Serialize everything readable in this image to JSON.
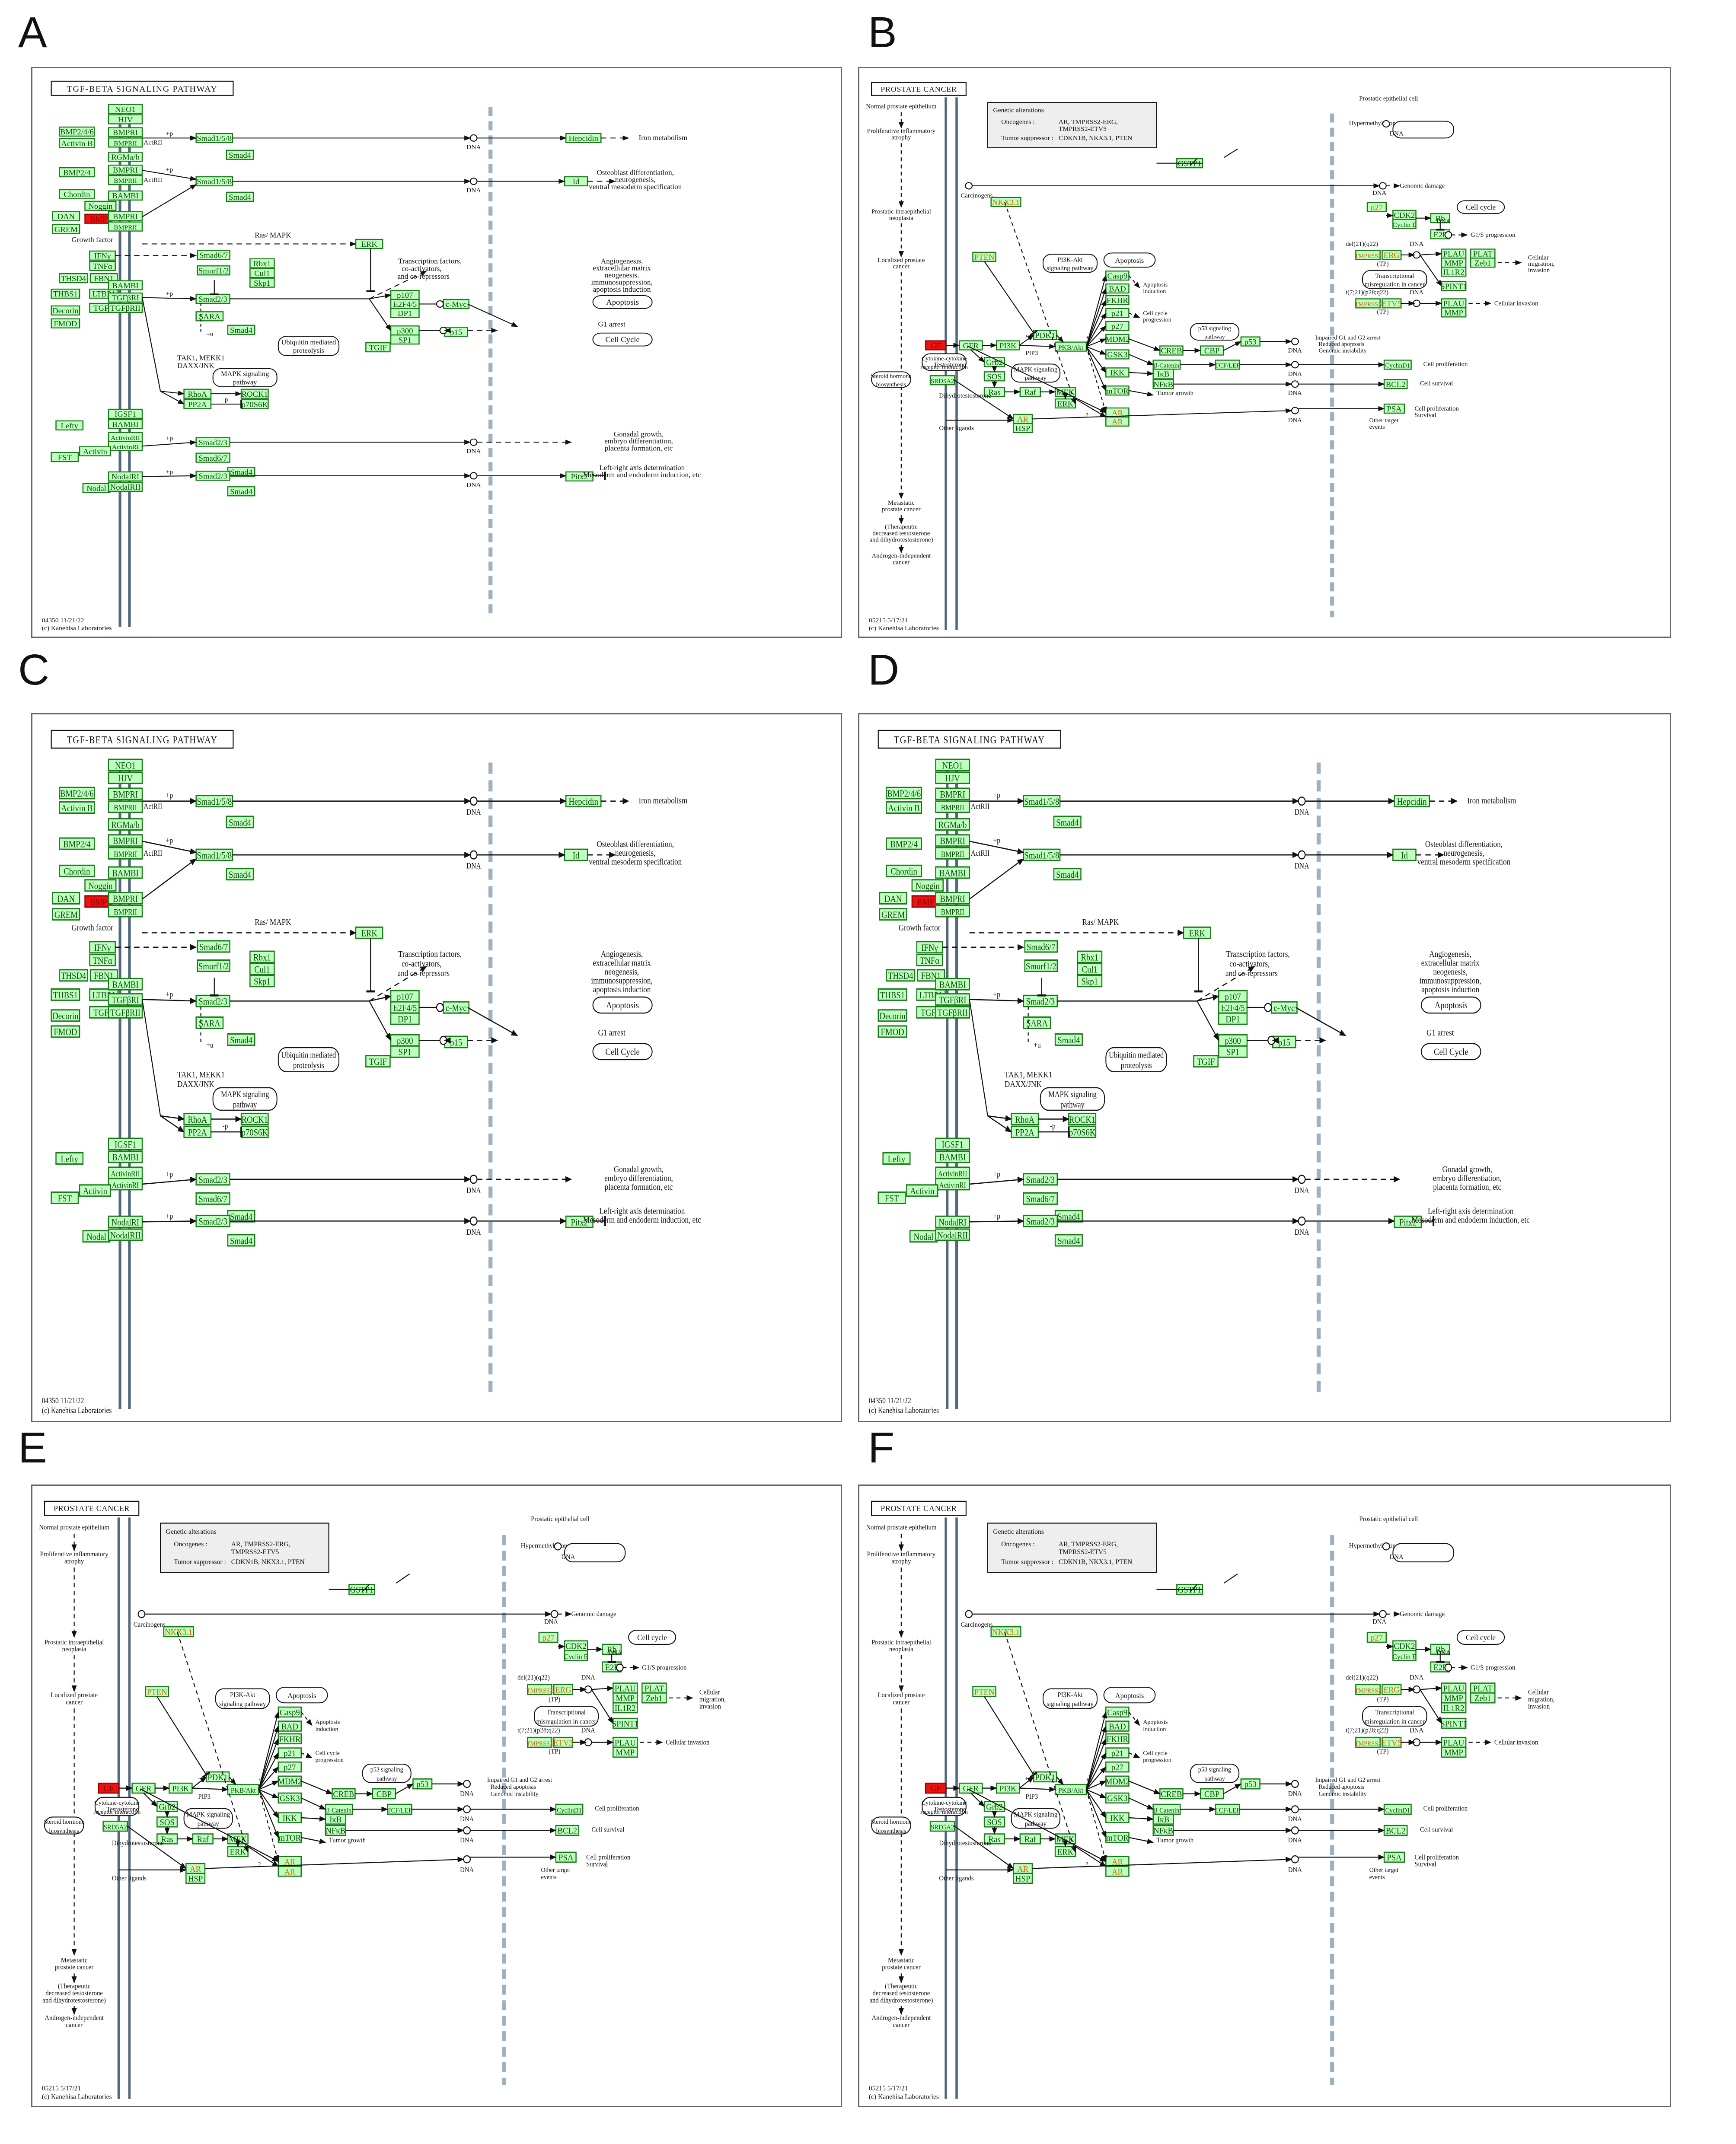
{
  "figure": {
    "panels": [
      {
        "letter": "A",
        "kind": "tgf",
        "highlight": "BMP",
        "highlight_ligand": true
      },
      {
        "letter": "B",
        "kind": "prostate",
        "highlight": "GF"
      },
      {
        "letter": "C",
        "kind": "tgf",
        "highlight": "BMP"
      },
      {
        "letter": "D",
        "kind": "tgf",
        "highlight": "BMP"
      },
      {
        "letter": "E",
        "kind": "prostate",
        "highlight": "GF"
      },
      {
        "letter": "F",
        "kind": "prostate",
        "highlight": "GF"
      }
    ]
  },
  "tgf": {
    "title": "TGF-BETA SIGNALING PATHWAY",
    "footer_id": "04350 11/21/22",
    "footer_copy": "(c) Kanehisa Laboratories",
    "nodes": {
      "neo1": "NEO1",
      "hjv": "HJV",
      "bmp246": "BMP2/4/6",
      "activinb": "Activin B",
      "bmpri_1": "BMPRI",
      "bmprii_1": "BMPRII",
      "actrii_1": "ActRII",
      "rgma": "RGMa/b",
      "bmp24": "BMP2/4",
      "bmpri_2": "BMPRI",
      "bmprii_2": "BMPRII",
      "actrii_2": "ActRII",
      "chordin": "Chordin",
      "noggin": "Noggin",
      "bambi_1": "BAMBI",
      "dan": "DAN",
      "bmp": "BMP",
      "bmpri_3": "BMPRI",
      "bmprii_3": "BMPRII",
      "grem": "GREM",
      "smad158_1": "Smad1/5/8",
      "smad4_1": "Smad4",
      "smad158_2": "Smad1/5/8",
      "smad4_2": "Smad4",
      "hepcidin": "Hepcidin",
      "id": "Id",
      "erk": "ERK",
      "ifng": "IFNγ",
      "tnfa": "TNFα",
      "smad67_1": "Smad6/7",
      "smurf": "Smurf1/2",
      "rbx1": "Rbx1",
      "cul1": "Cul1",
      "skp1": "Skp1",
      "thsd4": "THSD4",
      "fbn1": "FBN1",
      "thbs1": "THBS1",
      "ltbp1": "LTBP1",
      "decorin": "Decorin",
      "fmod": "FMOD",
      "tgfb": "TGFβ",
      "bambi_2": "BAMBI",
      "tgfbri": "TGFβRI",
      "tgfbrii": "TGFβRII",
      "smad23_1": "Smad2/3",
      "smad4_3": "Smad4",
      "sara": "SARA",
      "p107": "p107",
      "e2f45": "E2F4/5",
      "dp1": "DP1",
      "cmyc": "c-Myc",
      "p300": "p300",
      "sp1": "SP1",
      "p15": "p15",
      "tgif": "TGIF",
      "rhoa": "RhoA",
      "rock1": "ROCK1",
      "pp2a": "PP2A",
      "p70s6k": "p70S6K",
      "lefty": "Lefty",
      "igsf1": "IGSF1",
      "bambi_3": "BAMBI",
      "actrii_3": "ActivinRII",
      "activinri": "ActivinRI",
      "fst": "FST",
      "activin": "Activin",
      "smad23_2": "Smad2/3",
      "smad67_2": "Smad6/7",
      "smad4_4": "Smad4",
      "nodal": "Nodal",
      "nodalri": "NodalRI",
      "nodalrii": "NodalRII",
      "smad23_3": "Smad2/3",
      "smad4_5": "Smad4",
      "pitx2": "Pitx2"
    },
    "labels": {
      "iron": "Iron metabolism",
      "osteo": "Osteoblast differentiation,",
      "osteo2": "neurogenesis,",
      "osteo3": "ventral mesoderm specification",
      "growth_factor": "Growth factor",
      "ras_mapk": "Ras/ MAPK",
      "tf1": "Transcription factors,",
      "tf2": "co-activators,",
      "tf3": "and co-repressors",
      "angio1": "Angiogenesis,",
      "angio2": "extracellular matrix",
      "angio3": "neogenesis,",
      "angio4": "immunosuppression,",
      "angio5": "apoptosis induction",
      "apoptosis": "Apoptosis",
      "g1": "G1 arrest",
      "cellcycle": "Cell Cycle",
      "ubiq1": "Ubiquitin mediated",
      "ubiq2": "proteolysis",
      "tak1": "TAK1, MEKK1",
      "tak2": "DAXX/JNK",
      "mapk1": "MAPK signaling",
      "mapk2": "pathway",
      "gonad1": "Gonadal growth,",
      "gonad2": "embryo differentiation,",
      "gonad3": "placenta formation, etc",
      "lr1": "Left-right axis determination",
      "lr2": "Mesoderm and endoderm induction, etc",
      "dna": "DNA",
      "p": "+p",
      "u": "+u",
      "minusp": "-p"
    }
  },
  "prostate": {
    "title": "PROSTATE CANCER",
    "footer_id": "05215 5/17/21",
    "footer_copy": "(c) Kanehisa Laboratories",
    "genetic": {
      "head": "Genetic alterations",
      "onc_label": "Oncogenes :",
      "onc_val": "AR, TMPRSS2-ERG,",
      "onc_val2": "TMPRSS2-ETV5",
      "ts_label": "Tumor suppressor :",
      "ts_val": "CDKN1B, NKX3.1, PTEN"
    },
    "nodes": {
      "gf": "GF",
      "gfr": "GFR",
      "pi3k": "PI3K",
      "pdk1": "PDK1",
      "pkb": "PKB/Akt",
      "pten": "PTEN",
      "nkx31": "NKX3.1",
      "grb2": "Grb2",
      "sos": "SOS",
      "ras": "Ras",
      "raf": "Raf",
      "mek": "MEK",
      "erk": "ERK",
      "casp9": "Casp9",
      "bad": "BAD",
      "fkhr": "FKHR",
      "p21": "p21",
      "p27": "p27",
      "mdm2": "MDM2",
      "gsk3": "GSK3",
      "ikk": "IKK",
      "mtor": "mTOR",
      "creb": "CREB",
      "cbp": "CBP",
      "bcat": "β-Catenin",
      "ikb": "IκB",
      "nfkb": "NFκB",
      "p53": "p53",
      "tcflef": "TCF/LEF",
      "gstp1": "GSTP1",
      "p27b": "p27",
      "cdk2": "CDK2",
      "cycline": "Cyclin E",
      "rb": "Rb",
      "e2f": "E2F",
      "tmprss2_erg": "TMPRSS2",
      "erg": "ERG",
      "plau": "PLAU",
      "plat": "PLAT",
      "mmp": "MMP",
      "zeb1": "Zeb1",
      "il1r2": "IL1R2",
      "spint1": "SPINT1",
      "tmprss2_etv": "TMPRSS2",
      "etv5": "ETV5",
      "plau2": "PLAU",
      "mmp2": "MMP",
      "cyclind": "CyclinD1",
      "bcl2": "BCL2",
      "psa": "PSA",
      "ar": "AR",
      "hsp": "HSP",
      "ar2": "AR",
      "ar3": "AR",
      "srd5a2": "SRD5A2"
    },
    "labels": {
      "normal": "Normal prostate epithelium",
      "prolif1": "Proliferative inflammatory",
      "prolif2": "atrophy",
      "pin1": "Prostatic intraepithelial",
      "pin2": "neoplasia",
      "local1": "Localized prostate",
      "local2": "cancer",
      "meta1": "Metastatic",
      "meta2": "prostate cancer",
      "ther1": "(Therapeutic",
      "ther2": "decreased testosterone",
      "ther3": "and dihydrotestosterone)",
      "andro1": "Androgen-independent",
      "andro2": "cancer",
      "epith": "Prostatic epithelial cell",
      "hyper": "Hypermethylation",
      "carcin": "Carcinogens",
      "genomic": "Genomic damage",
      "cellcycle": "Cell cycle",
      "g1s": "G1/S progression",
      "del": "del(21)(q22)",
      "tp": "(TP)",
      "transcr1": "Transcriptional",
      "transcr2": "misregulation in cancer",
      "cellmig1": "Cellular",
      "cellmig2": "migration,",
      "cellmig3": "invasion",
      "cellinv": "Cellular invasion",
      "t7": "t(7;21)(p28;q22)",
      "pi3k_akt1": "PI3K-Akt",
      "pi3k_akt2": "signaling pathway",
      "apoptosis": "Apoptosis",
      "apop_ind1": "Apoptosis",
      "apop_ind2": "induction",
      "cc_prog1": "Cell cycle",
      "cc_prog2": "progression",
      "p53sig1": "p53 signaling",
      "p53sig2": "pathway",
      "impaired1": "Impaired G1 and G2 arrest",
      "impaired2": "Reduced apoptosis",
      "impaired3": "Genomic instability",
      "cellprolif": "Cell proliferation",
      "cellsurv": "Cell survival",
      "tumor": "Tumor growth",
      "cellprolif2": "Cell proliferation",
      "surv2": "Survival",
      "cytokine1": "Cytokine-cytokine",
      "cytokine2": "receptor interaction",
      "mapksig1": "MAPK signaling",
      "mapksig2": "pathway",
      "steroid1": "Steroid hormone",
      "steroid2": "biosynthesis",
      "testo": "Testosterone",
      "dht": "Dihydrotestosterone",
      "pip3": "PIP3",
      "other": "Other ligands",
      "other_target1": "Other target",
      "other_target2": "events",
      "dna": "DNA",
      "p": "+p",
      "u": "+u",
      "minusp": "-p",
      "q": "?"
    }
  },
  "colors": {
    "node_fill": "#bfffbf",
    "node_stroke": "#1a7a1a",
    "highlight": "#ee1111",
    "orange_text": "#cc6600",
    "membrane": "#52697d",
    "nuclear": "#9fb1c0"
  }
}
